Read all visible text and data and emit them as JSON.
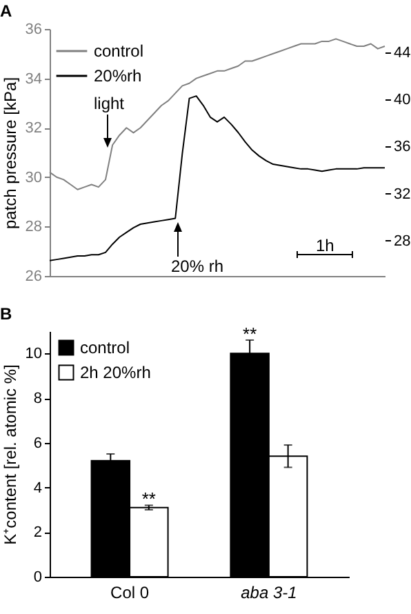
{
  "chart_data": [
    {
      "type": "line",
      "title": "A",
      "ylabel": "patch pressure [kPa]",
      "categories": [
        null,
        null,
        null,
        null,
        null,
        null,
        null,
        null,
        null,
        null,
        null,
        null,
        null,
        null,
        null,
        null,
        null,
        null,
        null,
        null,
        null,
        null,
        null,
        null,
        null,
        null,
        null,
        null,
        null,
        null,
        null,
        null,
        null,
        null,
        null,
        null,
        null,
        null,
        null,
        null,
        null,
        null,
        null,
        null,
        null,
        null,
        null,
        null,
        null
      ],
      "series": [
        {
          "name": "control",
          "color": "#808080",
          "values": [
            30.2,
            30.0,
            29.9,
            29.7,
            29.5,
            29.6,
            29.7,
            29.6,
            29.9,
            31.3,
            31.7,
            32.0,
            31.8,
            32.0,
            32.3,
            32.6,
            32.9,
            33.1,
            33.4,
            33.7,
            33.8,
            34.0,
            34.1,
            34.2,
            34.3,
            34.3,
            34.4,
            34.5,
            34.7,
            34.7,
            34.8,
            34.9,
            35.0,
            35.1,
            35.2,
            35.3,
            35.4,
            35.4,
            35.4,
            35.5,
            35.5,
            35.6,
            35.5,
            35.4,
            35.3,
            35.3,
            35.4,
            35.2,
            35.3
          ]
        },
        {
          "name": "20%rh",
          "color": "#000000",
          "axis": "y2",
          "values": [
            26.3,
            26.4,
            26.5,
            26.6,
            26.7,
            26.7,
            26.8,
            26.8,
            27.0,
            27.7,
            28.3,
            28.7,
            29.1,
            29.4,
            29.5,
            29.6,
            29.7,
            29.8,
            29.9,
            35.4,
            40.1,
            40.3,
            39.5,
            38.5,
            38.1,
            38.5,
            37.9,
            37.2,
            36.4,
            35.7,
            35.2,
            34.8,
            34.5,
            34.4,
            34.3,
            34.2,
            34.1,
            34.1,
            34.0,
            33.9,
            34.0,
            34.1,
            34.1,
            34.1,
            34.1,
            34.2,
            34.2,
            34.2,
            34.2
          ]
        }
      ],
      "ylim": [
        26,
        36
      ],
      "yticks": [
        26,
        28,
        30,
        32,
        34,
        36
      ],
      "y2lim": [
        25,
        46
      ],
      "y2ticks": [
        28,
        32,
        36,
        40,
        44
      ],
      "annotations": [
        "light",
        "20% rh",
        "1h"
      ],
      "legend": "top left",
      "grid": false,
      "marker": "none",
      "line_style": "solid"
    },
    {
      "type": "bar",
      "title": "B",
      "ylabel": "K⁺content [rel. atomic %]",
      "categories": [
        "Col 0",
        "aba 3-1"
      ],
      "series": [
        {
          "name": "control",
          "color": "#000000",
          "values": [
            5.2,
            10.0
          ],
          "errors": [
            0.3,
            0.6
          ]
        },
        {
          "name": "2h 20%rh",
          "color": "#ffffff",
          "values": [
            3.1,
            5.4
          ],
          "errors": [
            0.1,
            0.5
          ]
        }
      ],
      "ylim": [
        0,
        11
      ],
      "yticks": [
        0,
        2,
        4,
        6,
        8,
        10
      ],
      "annotations": [
        {
          "text": "**",
          "x": "Col 0",
          "y": 3.1
        },
        {
          "text": "**",
          "x": "aba 3-1",
          "y": 10.0
        }
      ],
      "legend": "top left",
      "grid": false
    }
  ]
}
